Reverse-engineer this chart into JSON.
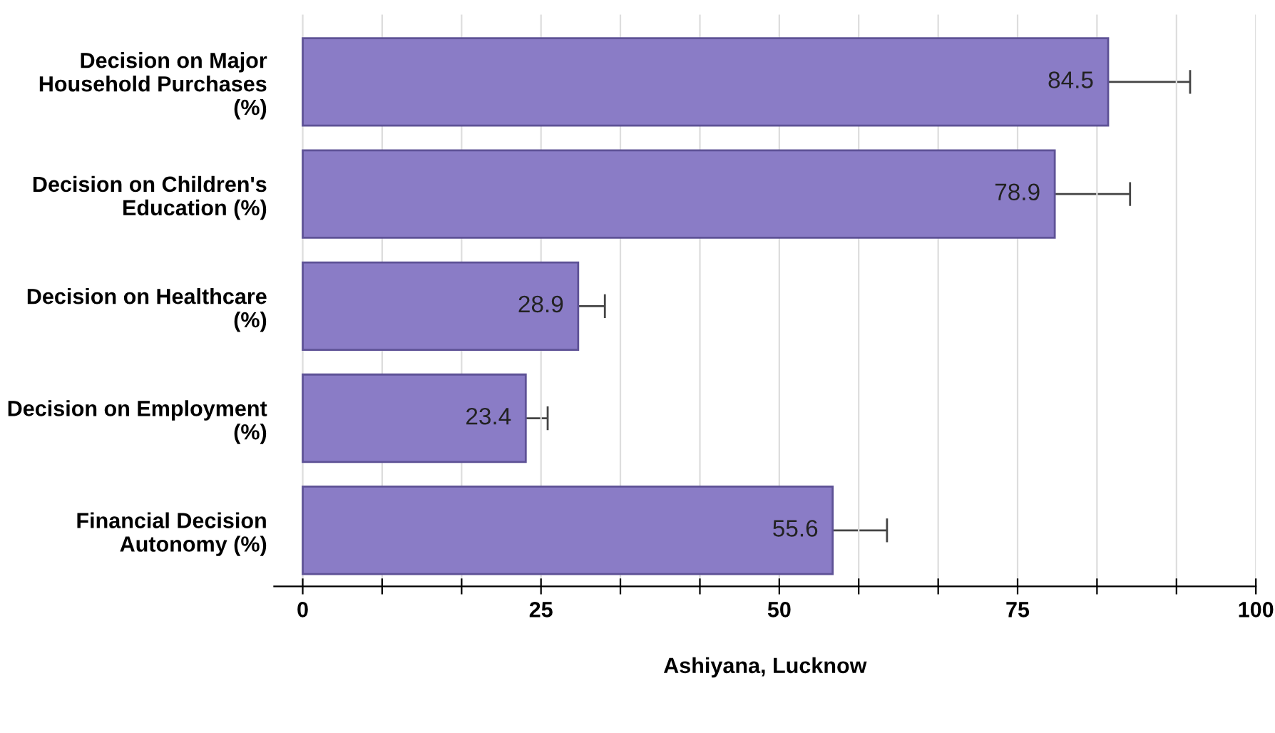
{
  "chart_data": {
    "type": "bar",
    "orientation": "horizontal",
    "xlabel": "Ashiyana, Lucknow",
    "categories": [
      "Decision on Major Household Purchases (%)",
      "Decision on Children's Education (%)",
      "Decision on Healthcare (%)",
      "Decision on Employment (%)",
      "Financial Decision Autonomy (%)"
    ],
    "values": [
      84.5,
      78.9,
      28.9,
      23.4,
      55.6
    ],
    "errors": [
      8.6,
      7.9,
      2.8,
      2.3,
      5.7
    ],
    "color": "#8a7cc6",
    "data_labels": true,
    "xlim": [
      -3,
      100
    ],
    "xticks": [
      0,
      {
        "value": 8.33,
        "label": null
      },
      {
        "value": 16.67,
        "label": null
      },
      25,
      {
        "value": 33.33,
        "label": null
      },
      {
        "value": 41.67,
        "label": null
      },
      50,
      {
        "value": 58.33,
        "label": null
      },
      {
        "value": 66.67,
        "label": null
      },
      75,
      {
        "value": 83.33,
        "label": null
      },
      {
        "value": 91.67,
        "label": null
      },
      100
    ],
    "grid": "x"
  }
}
